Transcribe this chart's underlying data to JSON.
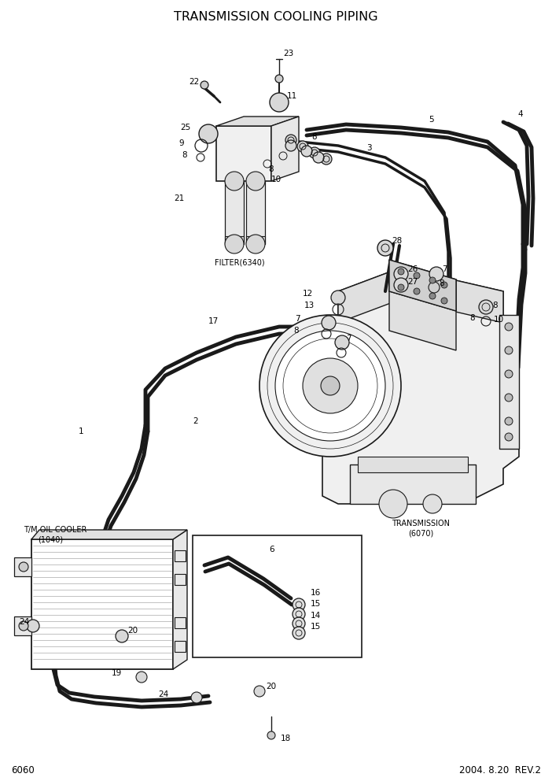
{
  "title": "TRANSMISSION COOLING PIPING",
  "page_number": "6060",
  "date_rev": "2004. 8.20  REV.2",
  "bg": "#ffffff",
  "lc": "#1a1a1a",
  "title_fs": 11.5,
  "label_fs": 7.5,
  "footer_fs": 8.5,
  "note_fs": 7.0,
  "dim": [
    702,
    992
  ]
}
